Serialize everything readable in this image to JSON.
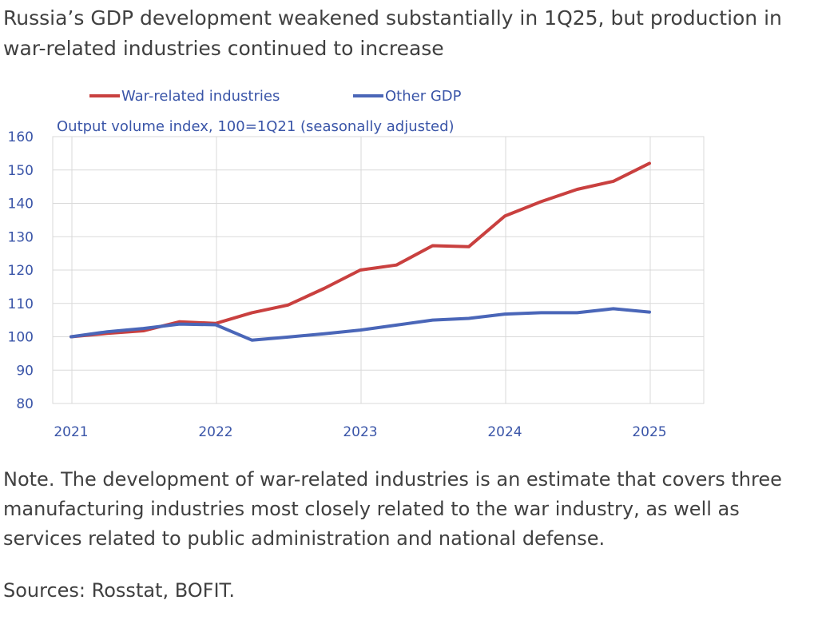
{
  "title": "Russia’s GDP development weakened substantially in 1Q25, but production in war-related industries continued to increase",
  "note": "Note. The development of war-related industries is an estimate that covers three manufacturing industries most closely related to the war industry, as well as services related to public administration and national defense.",
  "sources": "Sources: Rosstat, BOFIT.",
  "chart_data": {
    "type": "line",
    "units_label": "Output volume index, 100=1Q21 (seasonally adjusted)",
    "x": [
      "1Q21",
      "2Q21",
      "3Q21",
      "4Q21",
      "1Q22",
      "2Q22",
      "3Q22",
      "4Q22",
      "1Q23",
      "2Q23",
      "3Q23",
      "4Q23",
      "1Q24",
      "2Q24",
      "3Q24",
      "4Q24",
      "1Q25"
    ],
    "x_tick_labels": [
      "2021",
      "2022",
      "2023",
      "2024",
      "2025"
    ],
    "ylim": [
      80,
      160
    ],
    "y_ticks": [
      80,
      90,
      100,
      110,
      120,
      130,
      140,
      150,
      160
    ],
    "grid": true,
    "legend_position": "top",
    "series": [
      {
        "name": "War-related industries",
        "color": "#c9403f",
        "values": [
          100,
          101,
          101.8,
          104.5,
          104,
          107.2,
          109.5,
          114.5,
          120,
          121.5,
          127.3,
          127,
          136.2,
          140.5,
          144.2,
          146.6,
          152
        ]
      },
      {
        "name": "Other GDP",
        "color": "#4a66b8",
        "values": [
          100,
          101.5,
          102.5,
          103.8,
          103.6,
          99,
          99.9,
          100.9,
          102,
          103.5,
          105,
          105.5,
          106.8,
          107.2,
          107.2,
          108.4,
          107.4
        ]
      }
    ]
  }
}
